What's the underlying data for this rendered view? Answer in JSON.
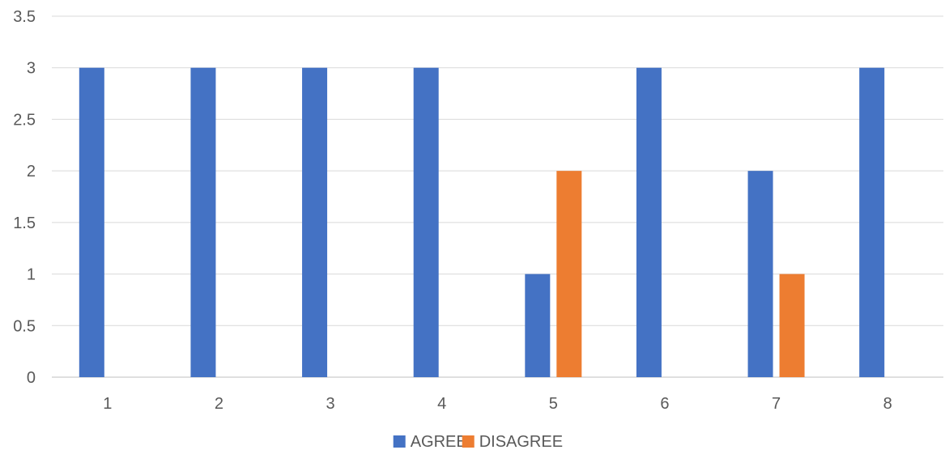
{
  "chart_data": {
    "type": "bar",
    "categories": [
      "1",
      "2",
      "3",
      "4",
      "5",
      "6",
      "7",
      "8"
    ],
    "series": [
      {
        "name": "AGREE",
        "values": [
          3,
          3,
          3,
          3,
          1,
          3,
          2,
          3
        ],
        "color": "#4472C4"
      },
      {
        "name": "DISAGREE",
        "values": [
          0,
          0,
          0,
          0,
          2,
          0,
          1,
          0
        ],
        "color": "#ED7D31"
      }
    ],
    "ylim": [
      0,
      3.5
    ],
    "yticks": [
      "0",
      "0.5",
      "1",
      "1.5",
      "2",
      "2.5",
      "3",
      "3.5"
    ],
    "grid": true,
    "legend_position": "bottom"
  }
}
